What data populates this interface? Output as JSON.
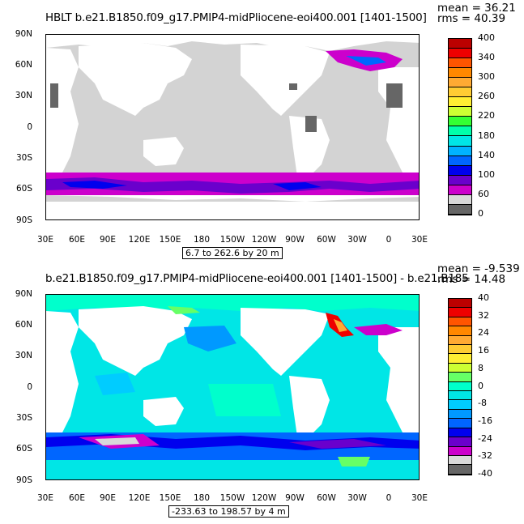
{
  "top": {
    "title": "HBLT b.e21.B1850.f09_g17.PMIP4-midPliocene-eoi400.001  [1401-1500]",
    "mean": "mean = 36.21",
    "rms": "rms = 40.39",
    "range": "6.7 to 262.6 by 20 m",
    "colorbar": {
      "colors": [
        "#666666",
        "#d9d9d9",
        "#cc00cc",
        "#6a00cc",
        "#0000ee",
        "#0066ff",
        "#00b3ff",
        "#00e6e6",
        "#00ffaa",
        "#33ff33",
        "#ccff33",
        "#ffee33",
        "#ffcc33",
        "#ffaa33",
        "#ff8800",
        "#ff5500",
        "#ee0000",
        "#bb0000"
      ],
      "labels": [
        "0",
        "60",
        "100",
        "140",
        "180",
        "220",
        "260",
        "300",
        "340",
        "400"
      ]
    }
  },
  "bottom": {
    "title": "b.e21.B1850.f09_g17.PMIP4-midPliocene-eoi400.001  [1401-1500] - b.e21.B185",
    "mean": "mean = -9.539",
    "rms": "rms = 14.48",
    "range": "-233.63 to 198.57 by 4 m",
    "colorbar": {
      "colors": [
        "#666666",
        "#d9d9d9",
        "#cc00cc",
        "#6a00cc",
        "#0000ee",
        "#0066ff",
        "#0099ff",
        "#00ccff",
        "#00e6e6",
        "#00ffcc",
        "#66ff66",
        "#ccff33",
        "#ffee33",
        "#ffcc33",
        "#ffaa33",
        "#ff8800",
        "#ff5500",
        "#ee0000",
        "#bb0000"
      ],
      "labels": [
        "-40",
        "-32",
        "-24",
        "-16",
        "-8",
        "0",
        "8",
        "16",
        "24",
        "32",
        "40"
      ]
    }
  },
  "axes": {
    "lat_labels": [
      "90N",
      "60N",
      "30N",
      "0",
      "30S",
      "60S",
      "90S"
    ],
    "lon_labels": [
      "30E",
      "60E",
      "90E",
      "120E",
      "150E",
      "180",
      "150W",
      "120W",
      "90W",
      "60W",
      "30W",
      "0",
      "30E"
    ]
  }
}
